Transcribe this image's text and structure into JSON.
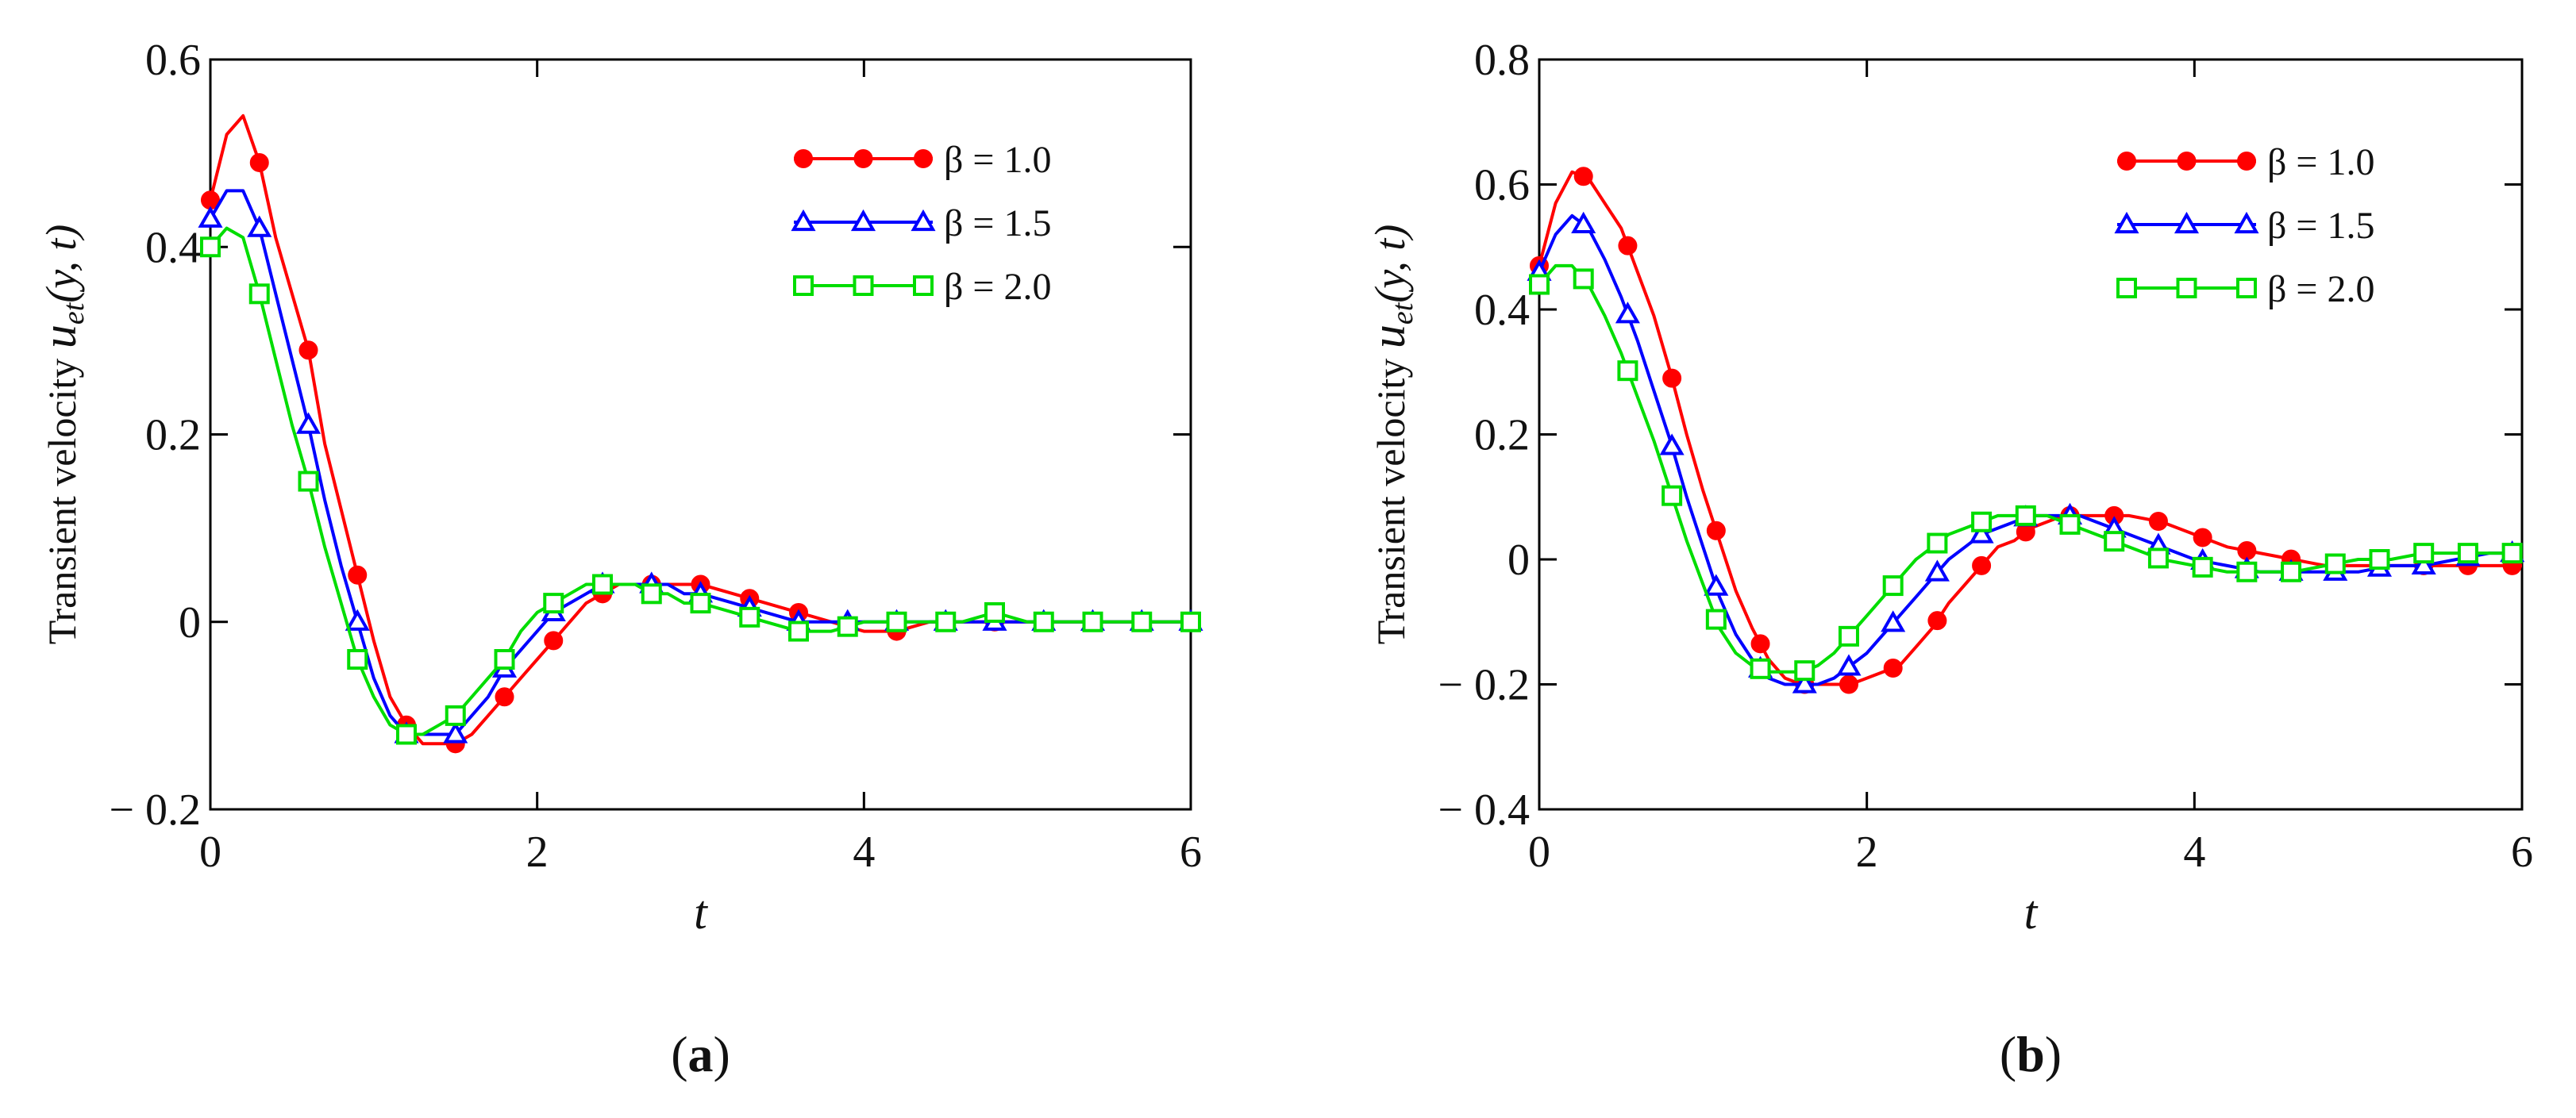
{
  "chart_data": [
    {
      "type": "line",
      "panel_label": "a",
      "xlabel": "t",
      "ylabel_prefix": "Transient  velocity",
      "ylabel_symbol": "u",
      "ylabel_subscript": "et",
      "ylabel_args": "(y, t)",
      "xlim": [
        0,
        6
      ],
      "ylim": [
        -0.2,
        0.6
      ],
      "xticks": [
        "0",
        "2",
        "4",
        "6"
      ],
      "yticks": [
        "− 0.2",
        "0",
        "0.2",
        "0.4",
        "0.6"
      ],
      "legend_position": "top-right",
      "series": [
        {
          "name": "β = 1.0",
          "color": "#ff0000",
          "marker": "filled-circle",
          "x": [
            0,
            0.1,
            0.2,
            0.3,
            0.4,
            0.5,
            0.6,
            0.7,
            0.8,
            0.9,
            1.0,
            1.1,
            1.2,
            1.3,
            1.4,
            1.5,
            1.6,
            1.7,
            1.8,
            1.9,
            2.0,
            2.1,
            2.2,
            2.3,
            2.4,
            2.5,
            2.6,
            2.7,
            2.8,
            2.9,
            3.0,
            3.2,
            3.4,
            3.6,
            3.8,
            4.0,
            4.2,
            4.4,
            4.6,
            4.8,
            5.0,
            5.2,
            5.4,
            5.6,
            5.8,
            6.0
          ],
          "y": [
            0.45,
            0.52,
            0.54,
            0.49,
            0.41,
            0.35,
            0.29,
            0.19,
            0.12,
            0.05,
            -0.02,
            -0.08,
            -0.11,
            -0.13,
            -0.13,
            -0.13,
            -0.12,
            -0.1,
            -0.08,
            -0.06,
            -0.04,
            -0.02,
            0.0,
            0.02,
            0.03,
            0.04,
            0.04,
            0.04,
            0.04,
            0.04,
            0.04,
            0.03,
            0.02,
            0.01,
            0.0,
            -0.01,
            -0.01,
            0.0,
            0.0,
            0.0,
            0.0,
            0.0,
            0.0,
            0.0,
            0.0,
            0.0
          ],
          "marker_x": [
            0.0,
            0.3,
            0.6,
            0.9,
            1.2,
            1.5,
            1.8,
            2.1,
            2.4,
            2.7,
            3.0,
            3.3,
            3.6,
            3.9,
            4.2,
            4.5,
            4.8,
            5.1,
            5.4,
            5.7,
            6.0
          ]
        },
        {
          "name": "β = 1.5",
          "color": "#0000ff",
          "marker": "open-triangle",
          "x": [
            0,
            0.1,
            0.2,
            0.3,
            0.4,
            0.5,
            0.6,
            0.7,
            0.8,
            0.9,
            1.0,
            1.1,
            1.2,
            1.3,
            1.4,
            1.5,
            1.6,
            1.7,
            1.8,
            1.9,
            2.0,
            2.1,
            2.2,
            2.3,
            2.4,
            2.5,
            2.6,
            2.7,
            2.8,
            2.9,
            3.0,
            3.2,
            3.4,
            3.6,
            3.8,
            4.0,
            4.2,
            4.4,
            4.6,
            4.8,
            5.0,
            5.2,
            5.4,
            5.6,
            5.8,
            6.0
          ],
          "y": [
            0.43,
            0.46,
            0.46,
            0.42,
            0.35,
            0.28,
            0.21,
            0.13,
            0.06,
            0.0,
            -0.06,
            -0.1,
            -0.12,
            -0.12,
            -0.12,
            -0.12,
            -0.1,
            -0.08,
            -0.05,
            -0.03,
            -0.01,
            0.01,
            0.02,
            0.03,
            0.04,
            0.04,
            0.04,
            0.04,
            0.04,
            0.03,
            0.03,
            0.02,
            0.01,
            0.0,
            0.0,
            0.0,
            0.0,
            0.0,
            0.0,
            0.0,
            0.0,
            0.0,
            0.0,
            0.0,
            0.0,
            0.0
          ],
          "marker_x": [
            0.0,
            0.3,
            0.6,
            0.9,
            1.2,
            1.5,
            1.8,
            2.1,
            2.4,
            2.7,
            3.0,
            3.3,
            3.6,
            3.9,
            4.2,
            4.5,
            4.8,
            5.1,
            5.4,
            5.7,
            6.0
          ]
        },
        {
          "name": "β = 2.0",
          "color": "#00dd00",
          "marker": "open-square",
          "x": [
            0,
            0.1,
            0.2,
            0.3,
            0.4,
            0.5,
            0.6,
            0.7,
            0.8,
            0.9,
            1.0,
            1.1,
            1.2,
            1.3,
            1.4,
            1.5,
            1.6,
            1.7,
            1.8,
            1.9,
            2.0,
            2.1,
            2.2,
            2.3,
            2.4,
            2.5,
            2.6,
            2.7,
            2.8,
            2.9,
            3.0,
            3.2,
            3.4,
            3.6,
            3.8,
            4.0,
            4.2,
            4.4,
            4.6,
            4.8,
            5.0,
            5.2,
            5.4,
            5.6,
            5.8,
            6.0
          ],
          "y": [
            0.4,
            0.42,
            0.41,
            0.35,
            0.28,
            0.21,
            0.15,
            0.08,
            0.02,
            -0.04,
            -0.08,
            -0.11,
            -0.12,
            -0.12,
            -0.11,
            -0.1,
            -0.08,
            -0.06,
            -0.04,
            -0.01,
            0.01,
            0.02,
            0.03,
            0.04,
            0.04,
            0.04,
            0.04,
            0.03,
            0.03,
            0.02,
            0.02,
            0.01,
            0.0,
            -0.01,
            -0.01,
            0.0,
            0.0,
            0.0,
            0.0,
            0.01,
            0.0,
            0.0,
            0.0,
            0.0,
            0.0,
            0.0
          ],
          "marker_x": [
            0.0,
            0.3,
            0.6,
            0.9,
            1.2,
            1.5,
            1.8,
            2.1,
            2.4,
            2.7,
            3.0,
            3.3,
            3.6,
            3.9,
            4.2,
            4.5,
            4.8,
            5.1,
            5.4,
            5.7,
            6.0
          ]
        }
      ]
    },
    {
      "type": "line",
      "panel_label": "b",
      "xlabel": "t",
      "ylabel_prefix": "Transient  velocity",
      "ylabel_symbol": "u",
      "ylabel_subscript": "et",
      "ylabel_args": "(y, t)",
      "xlim": [
        0,
        6
      ],
      "ylim": [
        -0.4,
        0.8
      ],
      "xticks": [
        "0",
        "2",
        "4",
        "6"
      ],
      "yticks": [
        "− 0.4",
        "− 0.2",
        "0",
        "0.2",
        "0.4",
        "0.6",
        "0.8"
      ],
      "legend_position": "top-right",
      "series": [
        {
          "name": "β = 1.0",
          "color": "#ff0000",
          "marker": "filled-circle",
          "x": [
            0,
            0.1,
            0.2,
            0.3,
            0.4,
            0.5,
            0.6,
            0.7,
            0.8,
            0.9,
            1.0,
            1.1,
            1.2,
            1.3,
            1.4,
            1.5,
            1.6,
            1.7,
            1.8,
            1.9,
            2.0,
            2.1,
            2.2,
            2.3,
            2.4,
            2.5,
            2.6,
            2.7,
            2.8,
            2.9,
            3.0,
            3.1,
            3.2,
            3.3,
            3.4,
            3.5,
            3.6,
            3.8,
            4.0,
            4.2,
            4.4,
            4.6,
            4.8,
            5.0,
            5.2,
            5.4,
            5.6,
            5.8,
            6.0
          ],
          "y": [
            0.47,
            0.57,
            0.62,
            0.61,
            0.57,
            0.53,
            0.46,
            0.39,
            0.3,
            0.2,
            0.11,
            0.03,
            -0.05,
            -0.11,
            -0.16,
            -0.19,
            -0.2,
            -0.2,
            -0.2,
            -0.2,
            -0.19,
            -0.18,
            -0.17,
            -0.14,
            -0.11,
            -0.07,
            -0.04,
            -0.01,
            0.02,
            0.03,
            0.05,
            0.06,
            0.07,
            0.07,
            0.07,
            0.07,
            0.07,
            0.06,
            0.04,
            0.02,
            0.01,
            0.0,
            -0.01,
            -0.01,
            -0.01,
            -0.01,
            -0.01,
            -0.01,
            -0.01
          ],
          "marker_x": [
            0.0,
            0.27,
            0.54,
            0.81,
            1.08,
            1.35,
            1.62,
            1.89,
            2.16,
            2.43,
            2.7,
            2.97,
            3.24,
            3.51,
            3.78,
            4.05,
            4.32,
            4.59,
            4.86,
            5.13,
            5.4,
            5.67,
            5.94
          ]
        },
        {
          "name": "β = 1.5",
          "color": "#0000ff",
          "marker": "open-triangle",
          "x": [
            0,
            0.1,
            0.2,
            0.3,
            0.4,
            0.5,
            0.6,
            0.7,
            0.8,
            0.9,
            1.0,
            1.1,
            1.2,
            1.3,
            1.4,
            1.5,
            1.6,
            1.7,
            1.8,
            1.9,
            2.0,
            2.1,
            2.2,
            2.3,
            2.4,
            2.5,
            2.6,
            2.7,
            2.8,
            2.9,
            3.0,
            3.1,
            3.2,
            3.3,
            3.4,
            3.5,
            3.6,
            3.8,
            4.0,
            4.2,
            4.4,
            4.6,
            4.8,
            5.0,
            5.2,
            5.4,
            5.6,
            5.8,
            6.0
          ],
          "y": [
            0.46,
            0.52,
            0.55,
            0.53,
            0.48,
            0.42,
            0.35,
            0.27,
            0.19,
            0.1,
            0.02,
            -0.06,
            -0.12,
            -0.16,
            -0.19,
            -0.2,
            -0.2,
            -0.2,
            -0.19,
            -0.17,
            -0.15,
            -0.12,
            -0.09,
            -0.06,
            -0.03,
            0.0,
            0.02,
            0.04,
            0.05,
            0.06,
            0.07,
            0.07,
            0.07,
            0.07,
            0.06,
            0.05,
            0.04,
            0.02,
            0.0,
            -0.01,
            -0.02,
            -0.02,
            -0.02,
            -0.02,
            -0.01,
            -0.01,
            0.0,
            0.01,
            0.01
          ],
          "marker_x": [
            0.0,
            0.27,
            0.54,
            0.81,
            1.08,
            1.35,
            1.62,
            1.89,
            2.16,
            2.43,
            2.7,
            2.97,
            3.24,
            3.51,
            3.78,
            4.05,
            4.32,
            4.59,
            4.86,
            5.13,
            5.4,
            5.67,
            5.94
          ]
        },
        {
          "name": "β = 2.0",
          "color": "#00dd00",
          "marker": "open-square",
          "x": [
            0,
            0.1,
            0.2,
            0.3,
            0.4,
            0.5,
            0.6,
            0.7,
            0.8,
            0.9,
            1.0,
            1.1,
            1.2,
            1.3,
            1.4,
            1.5,
            1.6,
            1.7,
            1.8,
            1.9,
            2.0,
            2.1,
            2.2,
            2.3,
            2.4,
            2.5,
            2.6,
            2.7,
            2.8,
            2.9,
            3.0,
            3.1,
            3.2,
            3.3,
            3.4,
            3.5,
            3.6,
            3.8,
            4.0,
            4.2,
            4.4,
            4.6,
            4.8,
            5.0,
            5.2,
            5.4,
            5.6,
            5.8,
            6.0
          ],
          "y": [
            0.44,
            0.47,
            0.47,
            0.44,
            0.39,
            0.33,
            0.26,
            0.19,
            0.11,
            0.03,
            -0.04,
            -0.11,
            -0.15,
            -0.17,
            -0.18,
            -0.18,
            -0.18,
            -0.17,
            -0.15,
            -0.12,
            -0.09,
            -0.06,
            -0.03,
            0.0,
            0.02,
            0.04,
            0.05,
            0.06,
            0.07,
            0.07,
            0.07,
            0.07,
            0.06,
            0.05,
            0.04,
            0.03,
            0.02,
            0.0,
            -0.01,
            -0.02,
            -0.02,
            -0.02,
            -0.01,
            0.0,
            0.0,
            0.01,
            0.01,
            0.01,
            0.01
          ],
          "marker_x": [
            0.0,
            0.27,
            0.54,
            0.81,
            1.08,
            1.35,
            1.62,
            1.89,
            2.16,
            2.43,
            2.7,
            2.97,
            3.24,
            3.51,
            3.78,
            4.05,
            4.32,
            4.59,
            4.86,
            5.13,
            5.4,
            5.67,
            5.94
          ]
        }
      ]
    }
  ],
  "captions": [
    "a",
    "b"
  ]
}
